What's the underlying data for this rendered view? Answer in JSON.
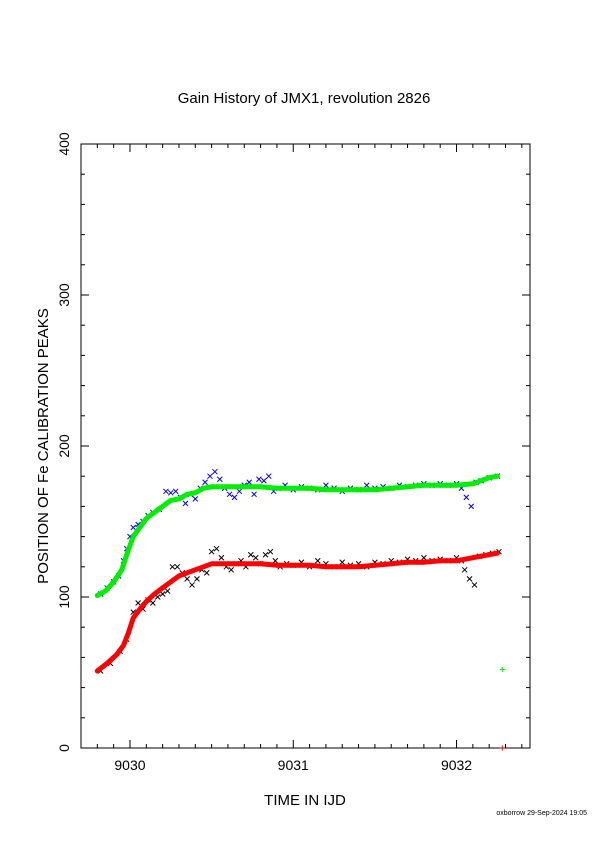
{
  "chart_data": {
    "type": "scatter",
    "title": "Gain History of JMX1, revolution 2826",
    "xlabel": "TIME IN IJD",
    "ylabel": "POSITION OF Fe CALIBRATION PEAKS",
    "xlim": [
      9029.7,
      9032.45
    ],
    "ylim": [
      0,
      400
    ],
    "x_ticks": [
      9030,
      9031,
      9032
    ],
    "y_ticks": [
      0,
      100,
      200,
      300,
      400
    ],
    "grid": false,
    "colors": {
      "blue": "#0000ff",
      "green": "#00ee00",
      "black": "#000000",
      "red": "#ff0000"
    },
    "series": [
      {
        "color": "blue",
        "marker": "x",
        "points": [
          [
            9029.82,
            102
          ],
          [
            9029.86,
            106
          ],
          [
            9029.9,
            110
          ],
          [
            9029.93,
            114
          ],
          [
            9029.96,
            124
          ],
          [
            9029.98,
            132
          ],
          [
            9030.0,
            140
          ],
          [
            9030.02,
            146
          ],
          [
            9030.05,
            148
          ],
          [
            9030.08,
            150
          ],
          [
            9030.11,
            154
          ],
          [
            9030.14,
            156
          ],
          [
            9030.18,
            158
          ],
          [
            9030.22,
            170
          ],
          [
            9030.25,
            169
          ],
          [
            9030.28,
            170
          ],
          [
            9030.31,
            166
          ],
          [
            9030.34,
            162
          ],
          [
            9030.37,
            168
          ],
          [
            9030.4,
            165
          ],
          [
            9030.43,
            172
          ],
          [
            9030.46,
            176
          ],
          [
            9030.49,
            180
          ],
          [
            9030.52,
            183
          ],
          [
            9030.55,
            178
          ],
          [
            9030.58,
            172
          ],
          [
            9030.61,
            168
          ],
          [
            9030.64,
            166
          ],
          [
            9030.67,
            170
          ],
          [
            9030.7,
            174
          ],
          [
            9030.73,
            176
          ],
          [
            9030.76,
            168
          ],
          [
            9030.79,
            178
          ],
          [
            9030.82,
            177
          ],
          [
            9030.85,
            180
          ],
          [
            9030.88,
            170
          ],
          [
            9030.91,
            172
          ],
          [
            9030.95,
            174
          ],
          [
            9031.0,
            171
          ],
          [
            9031.05,
            173
          ],
          [
            9031.1,
            172
          ],
          [
            9031.15,
            171
          ],
          [
            9031.2,
            174
          ],
          [
            9031.25,
            172
          ],
          [
            9031.3,
            170
          ],
          [
            9031.35,
            172
          ],
          [
            9031.4,
            171
          ],
          [
            9031.45,
            174
          ],
          [
            9031.5,
            172
          ],
          [
            9031.55,
            173
          ],
          [
            9031.6,
            172
          ],
          [
            9031.65,
            174
          ],
          [
            9031.7,
            173
          ],
          [
            9031.75,
            174
          ],
          [
            9031.8,
            175
          ],
          [
            9031.85,
            174
          ],
          [
            9031.9,
            175
          ],
          [
            9031.95,
            174
          ],
          [
            9032.0,
            175
          ],
          [
            9032.03,
            172
          ],
          [
            9032.06,
            166
          ],
          [
            9032.09,
            160
          ],
          [
            9032.12,
            176
          ],
          [
            9032.15,
            177
          ],
          [
            9032.2,
            179
          ],
          [
            9032.25,
            180
          ]
        ]
      },
      {
        "color": "green",
        "marker": "+",
        "points": [
          [
            9029.8,
            101
          ],
          [
            9029.85,
            104
          ],
          [
            9029.9,
            110
          ],
          [
            9029.95,
            118
          ],
          [
            9029.98,
            128
          ],
          [
            9030.02,
            140
          ],
          [
            9030.06,
            146
          ],
          [
            9030.1,
            152
          ],
          [
            9030.15,
            156
          ],
          [
            9030.2,
            160
          ],
          [
            9030.25,
            164
          ],
          [
            9030.3,
            165
          ],
          [
            9030.35,
            168
          ],
          [
            9030.4,
            169
          ],
          [
            9030.45,
            172
          ],
          [
            9030.5,
            173
          ],
          [
            9030.6,
            173
          ],
          [
            9030.7,
            173
          ],
          [
            9030.8,
            173
          ],
          [
            9030.9,
            172
          ],
          [
            9031.0,
            172
          ],
          [
            9031.1,
            172
          ],
          [
            9031.2,
            171
          ],
          [
            9031.3,
            171
          ],
          [
            9031.4,
            171
          ],
          [
            9031.5,
            171
          ],
          [
            9031.6,
            172
          ],
          [
            9031.7,
            173
          ],
          [
            9031.8,
            174
          ],
          [
            9031.9,
            174
          ],
          [
            9032.0,
            174
          ],
          [
            9032.1,
            175
          ],
          [
            9032.15,
            177
          ],
          [
            9032.2,
            179
          ],
          [
            9032.25,
            180
          ],
          [
            9032.28,
            52
          ]
        ]
      },
      {
        "color": "black",
        "marker": "x",
        "points": [
          [
            9029.82,
            51
          ],
          [
            9029.88,
            56
          ],
          [
            9029.94,
            64
          ],
          [
            9029.98,
            72
          ],
          [
            9030.02,
            90
          ],
          [
            9030.05,
            96
          ],
          [
            9030.08,
            92
          ],
          [
            9030.11,
            98
          ],
          [
            9030.14,
            96
          ],
          [
            9030.17,
            100
          ],
          [
            9030.2,
            102
          ],
          [
            9030.23,
            104
          ],
          [
            9030.26,
            120
          ],
          [
            9030.29,
            120
          ],
          [
            9030.32,
            116
          ],
          [
            9030.35,
            112
          ],
          [
            9030.38,
            108
          ],
          [
            9030.41,
            112
          ],
          [
            9030.44,
            118
          ],
          [
            9030.47,
            116
          ],
          [
            9030.5,
            130
          ],
          [
            9030.53,
            132
          ],
          [
            9030.56,
            126
          ],
          [
            9030.59,
            120
          ],
          [
            9030.62,
            118
          ],
          [
            9030.65,
            122
          ],
          [
            9030.68,
            124
          ],
          [
            9030.71,
            120
          ],
          [
            9030.74,
            128
          ],
          [
            9030.77,
            126
          ],
          [
            9030.8,
            122
          ],
          [
            9030.83,
            128
          ],
          [
            9030.86,
            130
          ],
          [
            9030.89,
            124
          ],
          [
            9030.92,
            120
          ],
          [
            9030.96,
            122
          ],
          [
            9031.0,
            121
          ],
          [
            9031.05,
            123
          ],
          [
            9031.1,
            120
          ],
          [
            9031.15,
            124
          ],
          [
            9031.2,
            122
          ],
          [
            9031.25,
            120
          ],
          [
            9031.3,
            123
          ],
          [
            9031.35,
            121
          ],
          [
            9031.4,
            122
          ],
          [
            9031.45,
            120
          ],
          [
            9031.5,
            123
          ],
          [
            9031.55,
            122
          ],
          [
            9031.6,
            124
          ],
          [
            9031.65,
            123
          ],
          [
            9031.7,
            125
          ],
          [
            9031.75,
            124
          ],
          [
            9031.8,
            126
          ],
          [
            9031.85,
            124
          ],
          [
            9031.9,
            125
          ],
          [
            9031.95,
            124
          ],
          [
            9032.0,
            126
          ],
          [
            9032.03,
            124
          ],
          [
            9032.05,
            118
          ],
          [
            9032.08,
            112
          ],
          [
            9032.11,
            108
          ],
          [
            9032.14,
            127
          ],
          [
            9032.18,
            128
          ],
          [
            9032.22,
            129
          ],
          [
            9032.26,
            130
          ]
        ]
      },
      {
        "color": "red",
        "marker": "+",
        "points": [
          [
            9029.8,
            51
          ],
          [
            9029.86,
            56
          ],
          [
            9029.92,
            62
          ],
          [
            9029.96,
            68
          ],
          [
            9029.99,
            76
          ],
          [
            9030.02,
            86
          ],
          [
            9030.06,
            92
          ],
          [
            9030.1,
            97
          ],
          [
            9030.15,
            102
          ],
          [
            9030.2,
            106
          ],
          [
            9030.25,
            110
          ],
          [
            9030.3,
            114
          ],
          [
            9030.35,
            116
          ],
          [
            9030.4,
            118
          ],
          [
            9030.45,
            120
          ],
          [
            9030.5,
            122
          ],
          [
            9030.6,
            122
          ],
          [
            9030.7,
            122
          ],
          [
            9030.8,
            122
          ],
          [
            9030.9,
            121
          ],
          [
            9031.0,
            121
          ],
          [
            9031.1,
            121
          ],
          [
            9031.2,
            120
          ],
          [
            9031.3,
            120
          ],
          [
            9031.4,
            120
          ],
          [
            9031.5,
            121
          ],
          [
            9031.6,
            122
          ],
          [
            9031.7,
            123
          ],
          [
            9031.8,
            123
          ],
          [
            9031.9,
            124
          ],
          [
            9032.0,
            124
          ],
          [
            9032.1,
            126
          ],
          [
            9032.15,
            127
          ],
          [
            9032.2,
            128
          ],
          [
            9032.25,
            129
          ],
          [
            9032.28,
            0
          ]
        ]
      }
    ]
  },
  "footer": "oxborrow 29-Sep-2024 19:05"
}
